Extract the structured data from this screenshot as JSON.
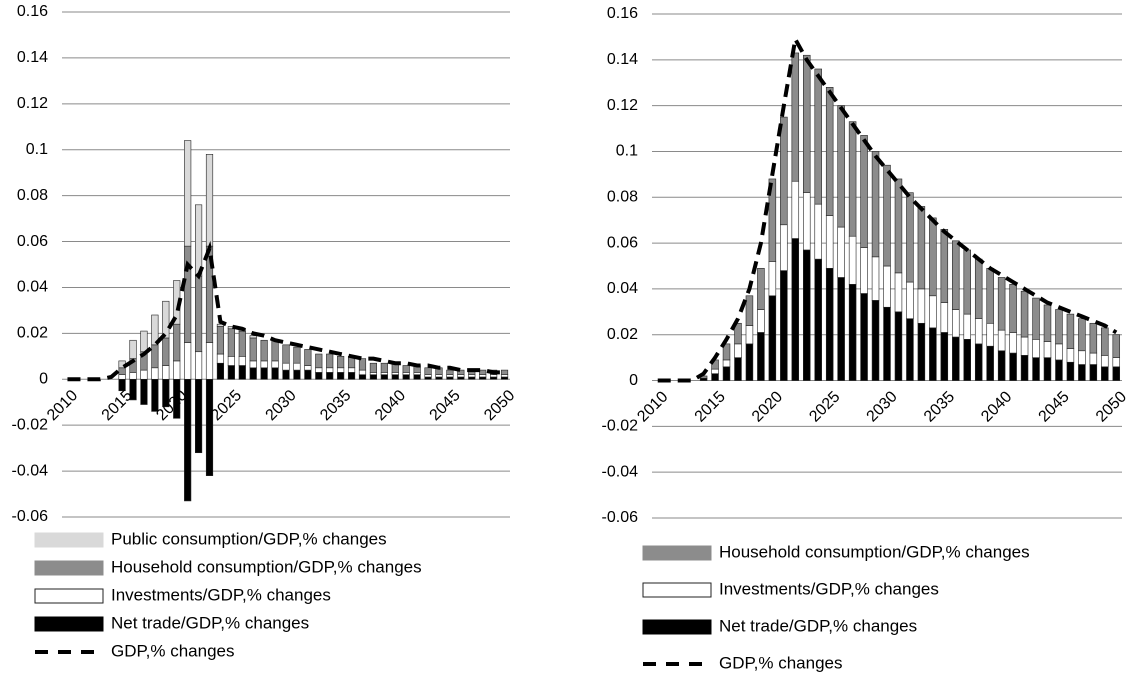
{
  "chart_data": [
    {
      "type": "bar",
      "categories": [
        "2010",
        null,
        null,
        null,
        null,
        "2015",
        null,
        null,
        null,
        null,
        "2020",
        null,
        null,
        null,
        null,
        "2025",
        null,
        null,
        null,
        null,
        "2030",
        null,
        null,
        null,
        null,
        "2035",
        null,
        null,
        null,
        null,
        "2040",
        null,
        null,
        null,
        null,
        "2045",
        null,
        null,
        null,
        null,
        "2050"
      ],
      "ylim": [
        -0.06,
        0.16
      ],
      "yticks": [
        -0.06,
        -0.04,
        -0.02,
        0,
        0.02,
        0.04,
        0.06,
        0.08,
        0.1,
        0.12,
        0.14,
        0.16
      ],
      "grid": true,
      "series": [
        {
          "name": "Public consumption/GDP,% changes",
          "color": "#d9d9d9",
          "values": [
            0,
            0,
            0,
            0,
            0,
            0.003,
            0.008,
            0.009,
            0.013,
            0.016,
            0.019,
            0.046,
            0.031,
            0.04,
            0.001,
            0.001,
            0.001,
            0.001,
            0,
            0,
            0,
            0,
            0,
            0,
            0,
            0,
            0,
            0,
            0,
            0,
            0,
            0,
            0,
            0,
            0,
            0,
            0,
            0,
            0,
            0,
            0
          ]
        },
        {
          "name": "Household consumption/GDP,% changes",
          "color": "#8c8c8c",
          "values": [
            0,
            0,
            0,
            0,
            0,
            0.003,
            0.006,
            0.008,
            0.01,
            0.012,
            0.016,
            0.042,
            0.033,
            0.042,
            0.012,
            0.012,
            0.011,
            0.01,
            0.009,
            0.009,
            0.008,
            0.007,
            0.007,
            0.006,
            0.006,
            0.005,
            0.005,
            0.005,
            0.004,
            0.004,
            0.004,
            0.003,
            0.003,
            0.003,
            0.003,
            0.002,
            0.002,
            0.002,
            0.002,
            0.002,
            0.002
          ]
        },
        {
          "name": "Investments/GDP,% changes",
          "color": "#ffffff",
          "values": [
            0,
            0,
            0,
            0,
            0,
            0.002,
            0.003,
            0.004,
            0.005,
            0.006,
            0.008,
            0.016,
            0.012,
            0.016,
            0.004,
            0.004,
            0.004,
            0.003,
            0.003,
            0.003,
            0.003,
            0.003,
            0.002,
            0.002,
            0.002,
            0.002,
            0.002,
            0.002,
            0.001,
            0.001,
            0.001,
            0.001,
            0.001,
            0.001,
            0.001,
            0.001,
            0.001,
            0.001,
            0.001,
            0.001,
            0.001
          ]
        },
        {
          "name": "Net trade/GDP,% changes",
          "color": "#000000",
          "values": [
            0,
            0,
            0,
            0,
            0,
            -0.005,
            -0.009,
            -0.011,
            -0.014,
            -0.012,
            -0.017,
            -0.053,
            -0.032,
            -0.042,
            0.007,
            0.006,
            0.006,
            0.005,
            0.005,
            0.005,
            0.004,
            0.004,
            0.004,
            0.003,
            0.003,
            0.003,
            0.003,
            0.002,
            0.002,
            0.002,
            0.002,
            0.002,
            0.002,
            0.001,
            0.001,
            0.001,
            0.001,
            0.001,
            0.001,
            0.001,
            0.001
          ]
        },
        {
          "name": "GDP,% changes",
          "type": "line",
          "color": "#000000",
          "values": [
            0,
            0,
            0,
            0,
            0.001,
            0.005,
            0.008,
            0.011,
            0.015,
            0.02,
            0.028,
            0.05,
            0.045,
            0.057,
            0.025,
            0.023,
            0.022,
            0.02,
            0.019,
            0.017,
            0.016,
            0.015,
            0.014,
            0.013,
            0.012,
            0.011,
            0.01,
            0.009,
            0.009,
            0.008,
            0.007,
            0.007,
            0.006,
            0.006,
            0.005,
            0.005,
            0.004,
            0.004,
            0.004,
            0.003,
            0.003
          ]
        }
      ]
    },
    {
      "type": "bar",
      "categories": [
        "2010",
        null,
        null,
        null,
        null,
        "2015",
        null,
        null,
        null,
        null,
        "2020",
        null,
        null,
        null,
        null,
        "2025",
        null,
        null,
        null,
        null,
        "2030",
        null,
        null,
        null,
        null,
        "2035",
        null,
        null,
        null,
        null,
        "2040",
        null,
        null,
        null,
        null,
        "2045",
        null,
        null,
        null,
        null,
        "2050"
      ],
      "ylim": [
        -0.06,
        0.16
      ],
      "yticks": [
        -0.06,
        -0.04,
        -0.02,
        0,
        0.02,
        0.04,
        0.06,
        0.08,
        0.1,
        0.12,
        0.14,
        0.16
      ],
      "grid": true,
      "series": [
        {
          "name": "Household consumption/GDP,% changes",
          "color": "#8c8c8c",
          "values": [
            0,
            0,
            0,
            0,
            0.001,
            0.004,
            0.007,
            0.009,
            0.013,
            0.018,
            0.036,
            0.047,
            0.056,
            0.06,
            0.059,
            0.056,
            0.053,
            0.05,
            0.049,
            0.046,
            0.044,
            0.041,
            0.039,
            0.036,
            0.034,
            0.032,
            0.03,
            0.028,
            0.026,
            0.024,
            0.023,
            0.021,
            0.02,
            0.018,
            0.016,
            0.015,
            0.015,
            0.014,
            0.013,
            0.012,
            0.01
          ]
        },
        {
          "name": "Investments/GDP,% changes",
          "color": "#ffffff",
          "values": [
            0,
            0,
            0,
            0,
            0,
            0.002,
            0.003,
            0.006,
            0.008,
            0.01,
            0.015,
            0.02,
            0.025,
            0.025,
            0.024,
            0.023,
            0.022,
            0.021,
            0.02,
            0.019,
            0.018,
            0.017,
            0.016,
            0.015,
            0.014,
            0.013,
            0.012,
            0.011,
            0.011,
            0.01,
            0.009,
            0.009,
            0.008,
            0.008,
            0.007,
            0.007,
            0.006,
            0.006,
            0.005,
            0.005,
            0.004
          ]
        },
        {
          "name": "Net trade/GDP,% changes",
          "color": "#000000",
          "values": [
            0,
            0,
            0,
            0,
            0.001,
            0.003,
            0.006,
            0.01,
            0.016,
            0.021,
            0.037,
            0.048,
            0.062,
            0.057,
            0.053,
            0.049,
            0.045,
            0.042,
            0.038,
            0.035,
            0.032,
            0.03,
            0.027,
            0.025,
            0.023,
            0.021,
            0.019,
            0.018,
            0.016,
            0.015,
            0.013,
            0.012,
            0.011,
            0.01,
            0.01,
            0.009,
            0.008,
            0.007,
            0.007,
            0.006,
            0.006
          ]
        },
        {
          "name": "GDP,% changes",
          "type": "line",
          "color": "#000000",
          "values": [
            0,
            0,
            0,
            0,
            0.003,
            0.01,
            0.018,
            0.027,
            0.04,
            0.06,
            0.09,
            0.12,
            0.149,
            0.14,
            0.133,
            0.126,
            0.119,
            0.112,
            0.105,
            0.098,
            0.092,
            0.086,
            0.08,
            0.075,
            0.07,
            0.065,
            0.061,
            0.057,
            0.053,
            0.049,
            0.046,
            0.043,
            0.04,
            0.037,
            0.034,
            0.032,
            0.03,
            0.028,
            0.026,
            0.024,
            0.021
          ]
        }
      ]
    }
  ]
}
